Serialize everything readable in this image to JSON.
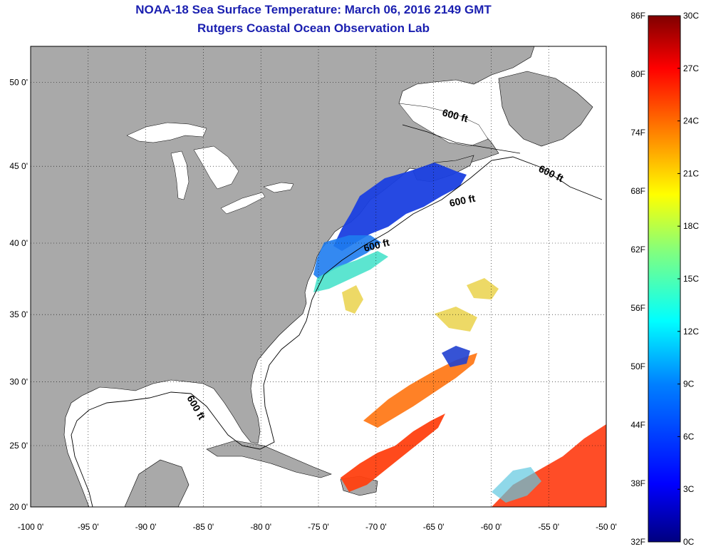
{
  "title": {
    "line1": "NOAA-18 Sea Surface Temperature:  March 06, 2016 2149 GMT",
    "line2": "Rutgers Coastal Ocean Observation Lab"
  },
  "map": {
    "lon_range": [
      -100,
      -50
    ],
    "lat_range": [
      20,
      52
    ],
    "lon_ticks": [
      "-100 0'",
      "-95 0'",
      "-90 0'",
      "-85 0'",
      "-80 0'",
      "-75 0'",
      "-70 0'",
      "-65 0'",
      "-60 0'",
      "-55 0'",
      "-50 0'"
    ],
    "lat_ticks": [
      "20 0'",
      "25 0'",
      "30 0'",
      "35 0'",
      "40 0'",
      "45 0'",
      "50 0'"
    ],
    "land_color": "#a9a9a9",
    "water_color": "#ffffff",
    "contour_labels": [
      "600 ft",
      "600 ft",
      "600 ft",
      "600 ft",
      "600 ft"
    ]
  },
  "colorbar": {
    "fahrenheit_labels": [
      "86F",
      "80F",
      "74F",
      "68F",
      "62F",
      "56F",
      "50F",
      "44F",
      "38F",
      "32F"
    ],
    "celsius_labels": [
      "30C",
      "27C",
      "24C",
      "21C",
      "18C",
      "15C",
      "12C",
      "9C",
      "6C",
      "3C",
      "0C"
    ],
    "colors": [
      "#000080",
      "#0000ff",
      "#0080ff",
      "#00ffff",
      "#80ff80",
      "#ffff00",
      "#ff8000",
      "#ff0000",
      "#800000"
    ]
  }
}
